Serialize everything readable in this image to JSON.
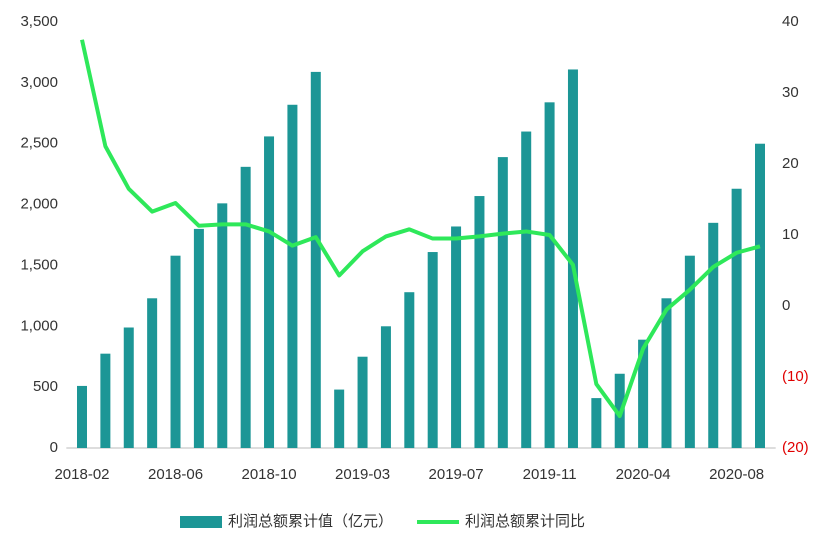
{
  "chart_data": {
    "type": "bar_line",
    "categories": [
      "2018-02",
      null,
      null,
      null,
      "2018-06",
      null,
      null,
      null,
      "2018-10",
      null,
      null,
      null,
      "2019-03",
      null,
      null,
      null,
      "2019-07",
      null,
      null,
      null,
      "2019-11",
      null,
      null,
      null,
      "2020-04",
      null,
      null,
      null,
      "2020-08",
      null
    ],
    "series": [
      {
        "name": "利润总额累计值（亿元）",
        "type": "bar",
        "color": "#1c9696",
        "values": [
          510,
          775,
          990,
          1230,
          1580,
          1800,
          2010,
          2310,
          2560,
          2820,
          3090,
          480,
          750,
          1000,
          1280,
          1610,
          1820,
          2070,
          2390,
          2600,
          2840,
          3110,
          410,
          610,
          890,
          1230,
          1580,
          1850,
          2130,
          2500
        ]
      },
      {
        "name": "利润总额累计同比",
        "type": "line",
        "axis": "y2",
        "color": "#2ee85a",
        "values": [
          37.5,
          22.5,
          16.5,
          13.3,
          14.5,
          11.3,
          11.5,
          11.5,
          10.5,
          8.5,
          9.7,
          4.3,
          7.7,
          9.8,
          10.8,
          9.5,
          9.5,
          9.8,
          10.2,
          10.5,
          10.0,
          5.8,
          -11,
          -15.5,
          -6,
          -0.5,
          2.3,
          5.5,
          7.5,
          8.4
        ]
      }
    ],
    "ylim": [
      0,
      3500
    ],
    "yticks": [
      0,
      500,
      {
        "value": 1000,
        "label": "1,000"
      },
      {
        "value": 1500,
        "label": "1,500"
      },
      {
        "value": 2000,
        "label": "2,000"
      },
      {
        "value": 2500,
        "label": "2,500"
      },
      {
        "value": 3000,
        "label": "3,000"
      },
      {
        "value": 3500,
        "label": "3,500"
      }
    ],
    "y2lim": [
      -20,
      40
    ],
    "y2ticks": [
      {
        "value": -20,
        "label": "(20)"
      },
      {
        "value": -10,
        "label": "(10)"
      },
      0,
      10,
      20,
      30,
      40
    ],
    "negative_tick_color": "#e00000",
    "legend": "bottom"
  }
}
